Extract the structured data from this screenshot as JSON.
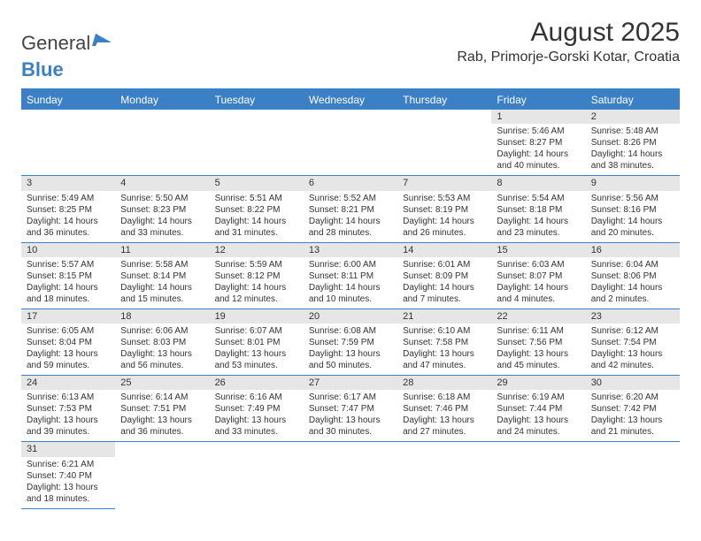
{
  "logo": {
    "part1": "General",
    "part2": "Blue"
  },
  "title": "August 2025",
  "location": "Rab, Primorje-Gorski Kotar, Croatia",
  "accent_color": "#3b7fc4",
  "header_bg": "#e6e6e6",
  "weekdays": [
    "Sunday",
    "Monday",
    "Tuesday",
    "Wednesday",
    "Thursday",
    "Friday",
    "Saturday"
  ],
  "weeks": [
    [
      null,
      null,
      null,
      null,
      null,
      {
        "n": "1",
        "sr": "Sunrise: 5:46 AM",
        "ss": "Sunset: 8:27 PM",
        "d1": "Daylight: 14 hours",
        "d2": "and 40 minutes."
      },
      {
        "n": "2",
        "sr": "Sunrise: 5:48 AM",
        "ss": "Sunset: 8:26 PM",
        "d1": "Daylight: 14 hours",
        "d2": "and 38 minutes."
      }
    ],
    [
      {
        "n": "3",
        "sr": "Sunrise: 5:49 AM",
        "ss": "Sunset: 8:25 PM",
        "d1": "Daylight: 14 hours",
        "d2": "and 36 minutes."
      },
      {
        "n": "4",
        "sr": "Sunrise: 5:50 AM",
        "ss": "Sunset: 8:23 PM",
        "d1": "Daylight: 14 hours",
        "d2": "and 33 minutes."
      },
      {
        "n": "5",
        "sr": "Sunrise: 5:51 AM",
        "ss": "Sunset: 8:22 PM",
        "d1": "Daylight: 14 hours",
        "d2": "and 31 minutes."
      },
      {
        "n": "6",
        "sr": "Sunrise: 5:52 AM",
        "ss": "Sunset: 8:21 PM",
        "d1": "Daylight: 14 hours",
        "d2": "and 28 minutes."
      },
      {
        "n": "7",
        "sr": "Sunrise: 5:53 AM",
        "ss": "Sunset: 8:19 PM",
        "d1": "Daylight: 14 hours",
        "d2": "and 26 minutes."
      },
      {
        "n": "8",
        "sr": "Sunrise: 5:54 AM",
        "ss": "Sunset: 8:18 PM",
        "d1": "Daylight: 14 hours",
        "d2": "and 23 minutes."
      },
      {
        "n": "9",
        "sr": "Sunrise: 5:56 AM",
        "ss": "Sunset: 8:16 PM",
        "d1": "Daylight: 14 hours",
        "d2": "and 20 minutes."
      }
    ],
    [
      {
        "n": "10",
        "sr": "Sunrise: 5:57 AM",
        "ss": "Sunset: 8:15 PM",
        "d1": "Daylight: 14 hours",
        "d2": "and 18 minutes."
      },
      {
        "n": "11",
        "sr": "Sunrise: 5:58 AM",
        "ss": "Sunset: 8:14 PM",
        "d1": "Daylight: 14 hours",
        "d2": "and 15 minutes."
      },
      {
        "n": "12",
        "sr": "Sunrise: 5:59 AM",
        "ss": "Sunset: 8:12 PM",
        "d1": "Daylight: 14 hours",
        "d2": "and 12 minutes."
      },
      {
        "n": "13",
        "sr": "Sunrise: 6:00 AM",
        "ss": "Sunset: 8:11 PM",
        "d1": "Daylight: 14 hours",
        "d2": "and 10 minutes."
      },
      {
        "n": "14",
        "sr": "Sunrise: 6:01 AM",
        "ss": "Sunset: 8:09 PM",
        "d1": "Daylight: 14 hours",
        "d2": "and 7 minutes."
      },
      {
        "n": "15",
        "sr": "Sunrise: 6:03 AM",
        "ss": "Sunset: 8:07 PM",
        "d1": "Daylight: 14 hours",
        "d2": "and 4 minutes."
      },
      {
        "n": "16",
        "sr": "Sunrise: 6:04 AM",
        "ss": "Sunset: 8:06 PM",
        "d1": "Daylight: 14 hours",
        "d2": "and 2 minutes."
      }
    ],
    [
      {
        "n": "17",
        "sr": "Sunrise: 6:05 AM",
        "ss": "Sunset: 8:04 PM",
        "d1": "Daylight: 13 hours",
        "d2": "and 59 minutes."
      },
      {
        "n": "18",
        "sr": "Sunrise: 6:06 AM",
        "ss": "Sunset: 8:03 PM",
        "d1": "Daylight: 13 hours",
        "d2": "and 56 minutes."
      },
      {
        "n": "19",
        "sr": "Sunrise: 6:07 AM",
        "ss": "Sunset: 8:01 PM",
        "d1": "Daylight: 13 hours",
        "d2": "and 53 minutes."
      },
      {
        "n": "20",
        "sr": "Sunrise: 6:08 AM",
        "ss": "Sunset: 7:59 PM",
        "d1": "Daylight: 13 hours",
        "d2": "and 50 minutes."
      },
      {
        "n": "21",
        "sr": "Sunrise: 6:10 AM",
        "ss": "Sunset: 7:58 PM",
        "d1": "Daylight: 13 hours",
        "d2": "and 47 minutes."
      },
      {
        "n": "22",
        "sr": "Sunrise: 6:11 AM",
        "ss": "Sunset: 7:56 PM",
        "d1": "Daylight: 13 hours",
        "d2": "and 45 minutes."
      },
      {
        "n": "23",
        "sr": "Sunrise: 6:12 AM",
        "ss": "Sunset: 7:54 PM",
        "d1": "Daylight: 13 hours",
        "d2": "and 42 minutes."
      }
    ],
    [
      {
        "n": "24",
        "sr": "Sunrise: 6:13 AM",
        "ss": "Sunset: 7:53 PM",
        "d1": "Daylight: 13 hours",
        "d2": "and 39 minutes."
      },
      {
        "n": "25",
        "sr": "Sunrise: 6:14 AM",
        "ss": "Sunset: 7:51 PM",
        "d1": "Daylight: 13 hours",
        "d2": "and 36 minutes."
      },
      {
        "n": "26",
        "sr": "Sunrise: 6:16 AM",
        "ss": "Sunset: 7:49 PM",
        "d1": "Daylight: 13 hours",
        "d2": "and 33 minutes."
      },
      {
        "n": "27",
        "sr": "Sunrise: 6:17 AM",
        "ss": "Sunset: 7:47 PM",
        "d1": "Daylight: 13 hours",
        "d2": "and 30 minutes."
      },
      {
        "n": "28",
        "sr": "Sunrise: 6:18 AM",
        "ss": "Sunset: 7:46 PM",
        "d1": "Daylight: 13 hours",
        "d2": "and 27 minutes."
      },
      {
        "n": "29",
        "sr": "Sunrise: 6:19 AM",
        "ss": "Sunset: 7:44 PM",
        "d1": "Daylight: 13 hours",
        "d2": "and 24 minutes."
      },
      {
        "n": "30",
        "sr": "Sunrise: 6:20 AM",
        "ss": "Sunset: 7:42 PM",
        "d1": "Daylight: 13 hours",
        "d2": "and 21 minutes."
      }
    ],
    [
      {
        "n": "31",
        "sr": "Sunrise: 6:21 AM",
        "ss": "Sunset: 7:40 PM",
        "d1": "Daylight: 13 hours",
        "d2": "and 18 minutes."
      },
      null,
      null,
      null,
      null,
      null,
      null
    ]
  ]
}
